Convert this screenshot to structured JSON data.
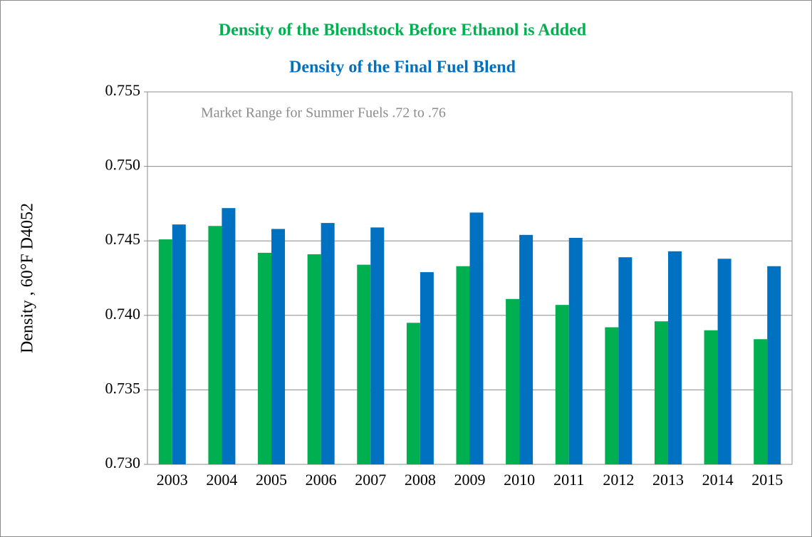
{
  "chart_data": {
    "type": "bar",
    "annotation": "Market Range for Summer Fuels .72  to .76",
    "y_label": "Density , 60°F  D4052",
    "categories": [
      "2003",
      "2004",
      "2005",
      "2006",
      "2007",
      "2008",
      "2009",
      "2010",
      "2011",
      "2012",
      "2013",
      "2014",
      "2015"
    ],
    "series": [
      {
        "name": "Density of the Blendstock Before Ethanol is Added",
        "color": "#00b050",
        "values": [
          0.7451,
          0.746,
          0.7442,
          0.7441,
          0.7434,
          0.7395,
          0.7433,
          0.7411,
          0.7407,
          0.7392,
          0.7396,
          0.739,
          0.7384
        ]
      },
      {
        "name": "Density of the Final Fuel Blend",
        "color": "#0070c0",
        "values": [
          0.7461,
          0.7472,
          0.7458,
          0.7462,
          0.7459,
          0.7429,
          0.7469,
          0.7454,
          0.7452,
          0.7439,
          0.7443,
          0.7438,
          0.7433
        ]
      }
    ],
    "ylim": [
      0.73,
      0.755
    ],
    "yticks": [
      {
        "value": 0.73,
        "label": "0.730"
      },
      0.735,
      {
        "value": 0.74,
        "label": "0.740"
      },
      0.745,
      {
        "value": 0.75,
        "label": "0.750"
      },
      0.755
    ],
    "grid": true
  }
}
